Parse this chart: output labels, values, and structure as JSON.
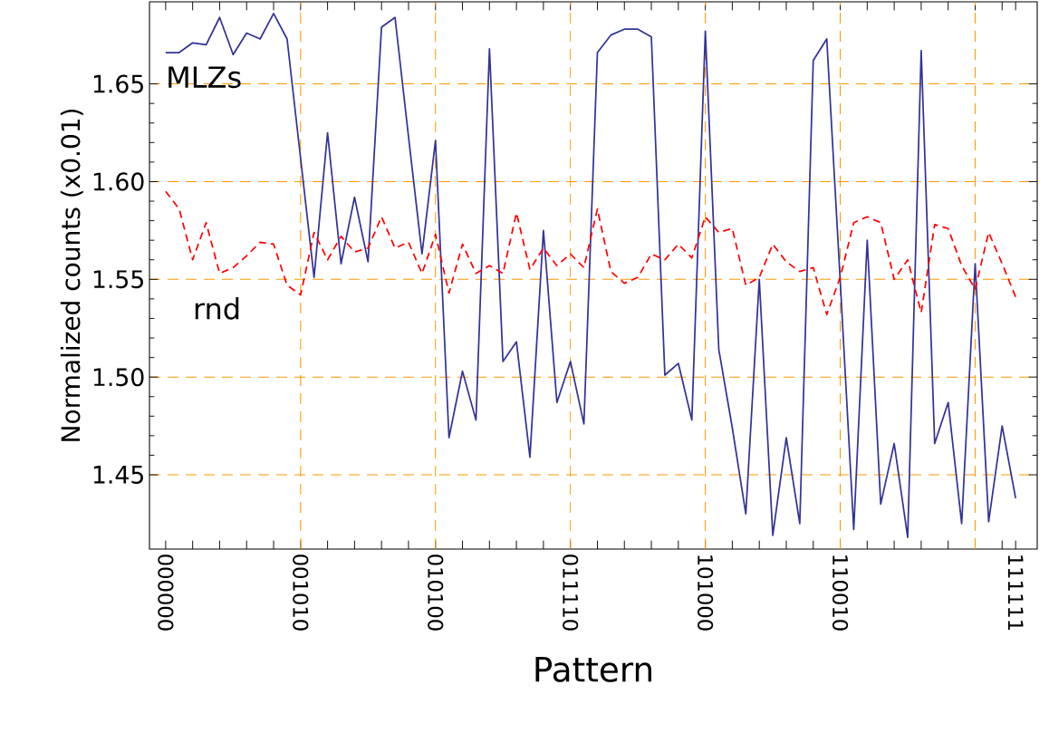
{
  "chart_data": {
    "type": "line",
    "xlabel": "Pattern",
    "ylabel": "Normalized counts (x0.01)",
    "categories": [
      "000000",
      null,
      null,
      null,
      null,
      null,
      null,
      null,
      null,
      null,
      "001010",
      null,
      null,
      null,
      null,
      null,
      null,
      null,
      null,
      null,
      "010100",
      null,
      null,
      null,
      null,
      null,
      null,
      null,
      null,
      null,
      "011110",
      null,
      null,
      null,
      null,
      null,
      null,
      null,
      null,
      null,
      "101000",
      null,
      null,
      null,
      null,
      null,
      null,
      null,
      null,
      null,
      "110010",
      null,
      null,
      null,
      null,
      null,
      null,
      null,
      null,
      null,
      null,
      null,
      null,
      "111111"
    ],
    "series": [
      {
        "name": "MLZs",
        "color": "#333399",
        "line_style": "solid",
        "values": [
          1.666,
          1.666,
          1.671,
          1.67,
          1.684,
          1.665,
          1.676,
          1.673,
          1.686,
          1.673,
          1.612,
          1.551,
          1.625,
          1.558,
          1.592,
          1.559,
          1.679,
          1.684,
          1.623,
          1.563,
          1.621,
          1.469,
          1.503,
          1.478,
          1.668,
          1.508,
          1.518,
          1.459,
          1.575,
          1.487,
          1.508,
          1.476,
          1.666,
          1.675,
          1.678,
          1.678,
          1.674,
          1.501,
          1.507,
          1.478,
          1.677,
          1.514,
          1.474,
          1.43,
          1.55,
          1.419,
          1.469,
          1.425,
          1.662,
          1.673,
          1.549,
          1.422,
          1.57,
          1.435,
          1.466,
          1.418,
          1.667,
          1.466,
          1.487,
          1.425,
          1.558,
          1.426,
          1.475,
          1.438
        ]
      },
      {
        "name": "rnd",
        "color": "#ff0000",
        "line_style": "dashed",
        "values": [
          1.595,
          1.586,
          1.56,
          1.579,
          1.553,
          1.556,
          1.562,
          1.569,
          1.568,
          1.547,
          1.542,
          1.574,
          1.56,
          1.572,
          1.564,
          1.566,
          1.582,
          1.566,
          1.569,
          1.553,
          1.573,
          1.543,
          1.568,
          1.553,
          1.557,
          1.553,
          1.584,
          1.555,
          1.566,
          1.557,
          1.563,
          1.556,
          1.586,
          1.554,
          1.548,
          1.551,
          1.563,
          1.56,
          1.568,
          1.561,
          1.582,
          1.574,
          1.576,
          1.547,
          1.551,
          1.568,
          1.559,
          1.554,
          1.556,
          1.532,
          1.551,
          1.579,
          1.582,
          1.579,
          1.55,
          1.56,
          1.533,
          1.578,
          1.576,
          1.557,
          1.545,
          1.574,
          1.558,
          1.541
        ]
      }
    ],
    "ylim": [
      1.412,
      1.692
    ],
    "yticks": [
      {
        "value": 1.45,
        "label": "1.45"
      },
      {
        "value": 1.5,
        "label": "1.50"
      },
      {
        "value": 1.55,
        "label": "1.55"
      },
      {
        "value": 1.6,
        "label": "1.60"
      },
      {
        "value": 1.65,
        "label": "1.65"
      }
    ],
    "grid": true,
    "legend": false,
    "marker": "none"
  }
}
